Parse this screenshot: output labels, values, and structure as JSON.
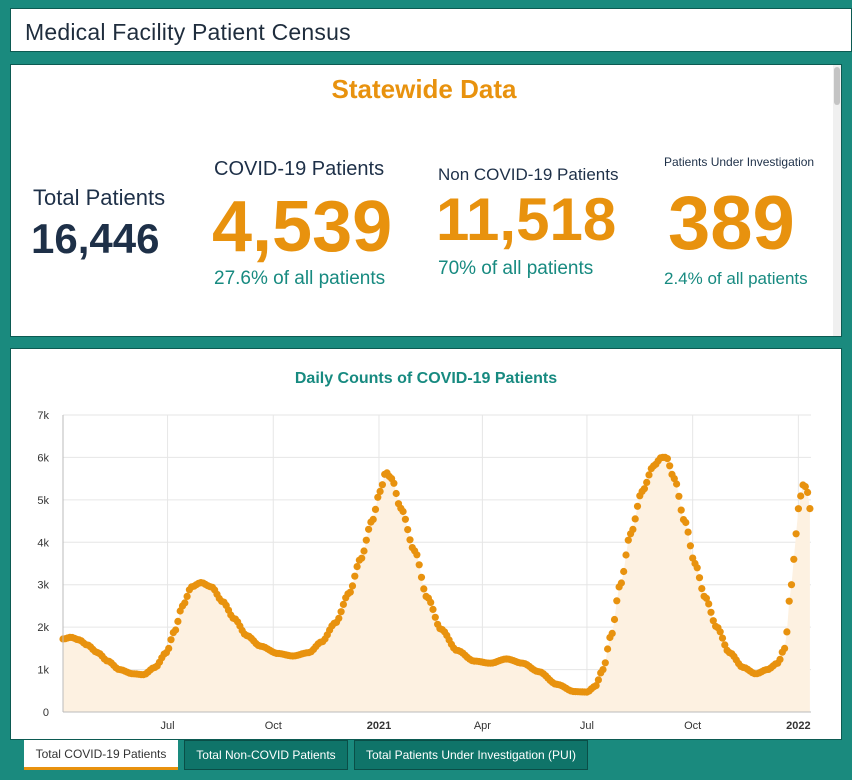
{
  "header": {
    "title": "Medical Facility Patient Census"
  },
  "statewide": {
    "heading": "Statewide Data",
    "total": {
      "label": "Total Patients",
      "value": "16,446"
    },
    "covid": {
      "label": "COVID-19 Patients",
      "value": "4,539",
      "pct": "27.6% of all patients"
    },
    "noncovid": {
      "label": "Non COVID-19 Patients",
      "value": "11,518",
      "pct": "70% of all patients"
    },
    "pui": {
      "label": "Patients Under Investigation",
      "value": "389",
      "pct": "2.4% of all patients"
    }
  },
  "colors": {
    "accent": "#e8920e",
    "teal": "#178a80",
    "navy": "#1e3048",
    "area": "#fdf1e1"
  },
  "chart_data": {
    "type": "area",
    "title": "Daily Counts of COVID-19 Patients",
    "xlabel": "",
    "ylabel": "",
    "ylim": [
      0,
      7000
    ],
    "yticks": [
      "0",
      "1k",
      "2k",
      "3k",
      "4k",
      "5k",
      "6k",
      "7k"
    ],
    "xticks": [
      {
        "date": "2020-07-01",
        "label": "Jul",
        "bold": false
      },
      {
        "date": "2020-10-01",
        "label": "Oct",
        "bold": false
      },
      {
        "date": "2021-01-01",
        "label": "2021",
        "bold": true
      },
      {
        "date": "2021-04-01",
        "label": "Apr",
        "bold": false
      },
      {
        "date": "2021-07-01",
        "label": "Jul",
        "bold": false
      },
      {
        "date": "2021-10-01",
        "label": "Oct",
        "bold": false
      },
      {
        "date": "2022-01-01",
        "label": "2022",
        "bold": true
      }
    ],
    "xrange": [
      "2020-04-01",
      "2022-01-12"
    ],
    "grid": true,
    "series": [
      {
        "points": [
          [
            "2020-04-01",
            1720
          ],
          [
            "2020-04-08",
            1760
          ],
          [
            "2020-04-15",
            1700
          ],
          [
            "2020-04-22",
            1580
          ],
          [
            "2020-05-01",
            1400
          ],
          [
            "2020-05-10",
            1200
          ],
          [
            "2020-05-20",
            1000
          ],
          [
            "2020-06-01",
            900
          ],
          [
            "2020-06-10",
            880
          ],
          [
            "2020-06-20",
            1050
          ],
          [
            "2020-06-30",
            1400
          ],
          [
            "2020-07-07",
            1900
          ],
          [
            "2020-07-14",
            2500
          ],
          [
            "2020-07-22",
            2950
          ],
          [
            "2020-07-30",
            3050
          ],
          [
            "2020-08-08",
            2950
          ],
          [
            "2020-08-18",
            2600
          ],
          [
            "2020-08-28",
            2200
          ],
          [
            "2020-09-08",
            1800
          ],
          [
            "2020-09-20",
            1550
          ],
          [
            "2020-10-05",
            1380
          ],
          [
            "2020-10-18",
            1320
          ],
          [
            "2020-11-01",
            1400
          ],
          [
            "2020-11-12",
            1650
          ],
          [
            "2020-11-24",
            2100
          ],
          [
            "2020-12-06",
            2800
          ],
          [
            "2020-12-16",
            3600
          ],
          [
            "2020-12-26",
            4500
          ],
          [
            "2021-01-02",
            5200
          ],
          [
            "2021-01-07",
            5650
          ],
          [
            "2021-01-12",
            5500
          ],
          [
            "2021-01-20",
            4800
          ],
          [
            "2021-02-01",
            3800
          ],
          [
            "2021-02-12",
            2700
          ],
          [
            "2021-02-24",
            1950
          ],
          [
            "2021-03-10",
            1450
          ],
          [
            "2021-03-25",
            1200
          ],
          [
            "2021-04-08",
            1150
          ],
          [
            "2021-04-22",
            1250
          ],
          [
            "2021-05-06",
            1150
          ],
          [
            "2021-05-20",
            950
          ],
          [
            "2021-06-05",
            650
          ],
          [
            "2021-06-20",
            480
          ],
          [
            "2021-07-01",
            470
          ],
          [
            "2021-07-08",
            600
          ],
          [
            "2021-07-15",
            1000
          ],
          [
            "2021-07-22",
            1800
          ],
          [
            "2021-07-30",
            3000
          ],
          [
            "2021-08-08",
            4200
          ],
          [
            "2021-08-18",
            5200
          ],
          [
            "2021-08-28",
            5800
          ],
          [
            "2021-09-04",
            6000
          ],
          [
            "2021-09-08",
            6000
          ],
          [
            "2021-09-15",
            5500
          ],
          [
            "2021-09-24",
            4500
          ],
          [
            "2021-10-03",
            3500
          ],
          [
            "2021-10-12",
            2700
          ],
          [
            "2021-10-22",
            2000
          ],
          [
            "2021-11-02",
            1400
          ],
          [
            "2021-11-14",
            1050
          ],
          [
            "2021-11-25",
            900
          ],
          [
            "2021-12-05",
            1000
          ],
          [
            "2021-12-14",
            1150
          ],
          [
            "2021-12-20",
            1500
          ],
          [
            "2021-12-26",
            3000
          ],
          [
            "2021-12-30",
            4200
          ],
          [
            "2022-01-02",
            5000
          ],
          [
            "2022-01-05",
            5350
          ],
          [
            "2022-01-08",
            5300
          ],
          [
            "2022-01-10",
            5050
          ],
          [
            "2022-01-12",
            4539
          ]
        ]
      }
    ]
  },
  "tabs": [
    {
      "label": "Total COVID-19 Patients",
      "active": true
    },
    {
      "label": "Total Non-COVID Patients",
      "active": false
    },
    {
      "label": "Total Patients Under Investigation (PUI)",
      "active": false
    }
  ]
}
